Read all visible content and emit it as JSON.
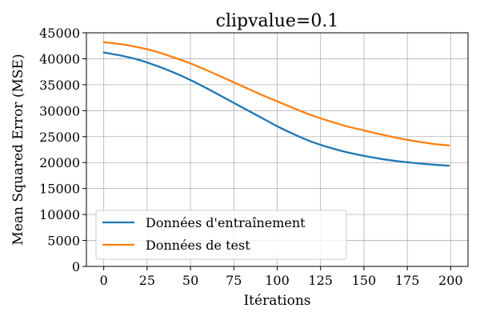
{
  "chart_data": {
    "type": "line",
    "title": "clipvalue=0.1",
    "xlabel": "Itérations",
    "ylabel": "Mean Squared Error (MSE)",
    "xlim": [
      -10,
      210
    ],
    "ylim": [
      0,
      45000
    ],
    "xticks": [
      0,
      25,
      50,
      75,
      100,
      125,
      150,
      175,
      200
    ],
    "yticks": [
      0,
      5000,
      10000,
      15000,
      20000,
      25000,
      30000,
      35000,
      40000,
      45000
    ],
    "grid": true,
    "legend_position": "lower-left",
    "x": [
      0,
      10,
      20,
      30,
      40,
      50,
      60,
      70,
      80,
      90,
      100,
      110,
      120,
      130,
      140,
      150,
      160,
      170,
      180,
      190,
      199
    ],
    "series": [
      {
        "name": "Données d'entraînement",
        "color": "#1f77b4",
        "values": [
          41200,
          40600,
          39800,
          38700,
          37400,
          35900,
          34200,
          32400,
          30600,
          28800,
          27000,
          25400,
          24000,
          22900,
          22000,
          21300,
          20700,
          20250,
          19900,
          19600,
          19400
        ]
      },
      {
        "name": "Données de test",
        "color": "#ff7f0e",
        "values": [
          43200,
          42800,
          42200,
          41400,
          40300,
          39100,
          37700,
          36200,
          34700,
          33200,
          31800,
          30400,
          29100,
          28000,
          27000,
          26200,
          25400,
          24700,
          24100,
          23600,
          23300
        ]
      }
    ]
  }
}
